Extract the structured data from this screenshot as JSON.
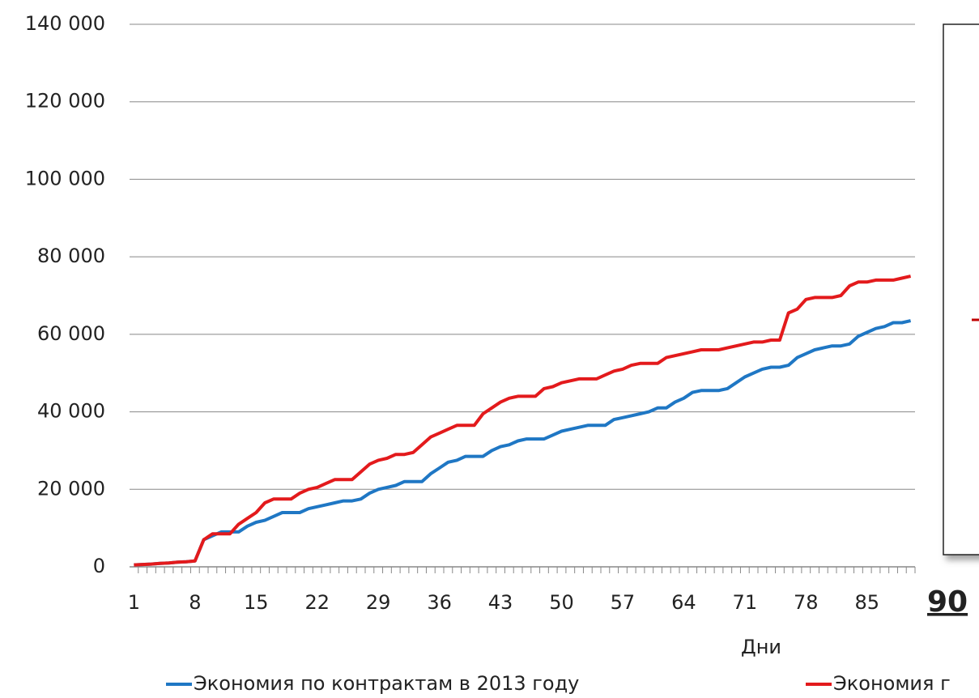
{
  "chart_data": {
    "type": "line",
    "x_label": "Дни",
    "annotation": "90",
    "x": [
      1,
      2,
      3,
      4,
      5,
      6,
      7,
      8,
      9,
      10,
      11,
      12,
      13,
      14,
      15,
      16,
      17,
      18,
      19,
      20,
      21,
      22,
      23,
      24,
      25,
      26,
      27,
      28,
      29,
      30,
      31,
      32,
      33,
      34,
      35,
      36,
      37,
      38,
      39,
      40,
      41,
      42,
      43,
      44,
      45,
      46,
      47,
      48,
      49,
      50,
      51,
      52,
      53,
      54,
      55,
      56,
      57,
      58,
      59,
      60,
      61,
      62,
      63,
      64,
      65,
      66,
      67,
      68,
      69,
      70,
      71,
      72,
      73,
      74,
      75,
      76,
      77,
      78,
      79,
      80,
      81,
      82,
      83,
      84,
      85,
      86,
      87,
      88,
      89,
      90
    ],
    "xlim": [
      0.5,
      90.5
    ],
    "xticks": [
      1,
      8,
      15,
      22,
      29,
      36,
      43,
      50,
      57,
      64,
      71,
      78,
      85
    ],
    "ylim": [
      0,
      140000
    ],
    "yticks": [
      {
        "value": 0,
        "label": "0"
      },
      {
        "value": 20000,
        "label": "20 000"
      },
      {
        "value": 40000,
        "label": "40 000"
      },
      {
        "value": 60000,
        "label": "60 000"
      },
      {
        "value": 80000,
        "label": "80 000"
      },
      {
        "value": 100000,
        "label": "100 000"
      },
      {
        "value": 120000,
        "label": "120 000"
      },
      {
        "value": 140000,
        "label": "140 000"
      }
    ],
    "grid": true,
    "legend": "bottom",
    "series": [
      {
        "name": "Экономия по контрактам в 2013 году",
        "color": "#1f77c4",
        "values": [
          500,
          600,
          700,
          900,
          1000,
          1200,
          1300,
          1500,
          7000,
          8000,
          9000,
          9000,
          9000,
          10500,
          11500,
          12000,
          13000,
          14000,
          14000,
          14000,
          15000,
          15500,
          16000,
          16500,
          17000,
          17000,
          17500,
          19000,
          20000,
          20500,
          21000,
          22000,
          22000,
          22000,
          24000,
          25500,
          27000,
          27500,
          28500,
          28500,
          28500,
          30000,
          31000,
          31500,
          32500,
          33000,
          33000,
          33000,
          34000,
          35000,
          35500,
          36000,
          36500,
          36500,
          36500,
          38000,
          38500,
          39000,
          39500,
          40000,
          41000,
          41000,
          42500,
          43500,
          45000,
          45500,
          45500,
          45500,
          46000,
          47500,
          49000,
          50000,
          51000,
          51500,
          51500,
          52000,
          54000,
          55000,
          56000,
          56500,
          57000,
          57000,
          57500,
          59500,
          60500,
          61500,
          62000,
          63000,
          63000,
          63500
        ]
      },
      {
        "name": "Экономия г",
        "color": "#e31a1c",
        "values": [
          500,
          600,
          700,
          900,
          1000,
          1200,
          1300,
          1500,
          7000,
          8500,
          8500,
          8500,
          11000,
          12500,
          14000,
          16500,
          17500,
          17500,
          17500,
          19000,
          20000,
          20500,
          21500,
          22500,
          22500,
          22500,
          24500,
          26500,
          27500,
          28000,
          29000,
          29000,
          29500,
          31500,
          33500,
          34500,
          35500,
          36500,
          36500,
          36500,
          39500,
          41000,
          42500,
          43500,
          44000,
          44000,
          44000,
          46000,
          46500,
          47500,
          48000,
          48500,
          48500,
          48500,
          49500,
          50500,
          51000,
          52000,
          52500,
          52500,
          52500,
          54000,
          54500,
          55000,
          55500,
          56000,
          56000,
          56000,
          56500,
          57000,
          57500,
          58000,
          58000,
          58500,
          58500,
          65500,
          66500,
          69000,
          69500,
          69500,
          69500,
          70000,
          72500,
          73500,
          73500,
          74000,
          74000,
          74000,
          74500,
          75000
        ]
      }
    ]
  }
}
